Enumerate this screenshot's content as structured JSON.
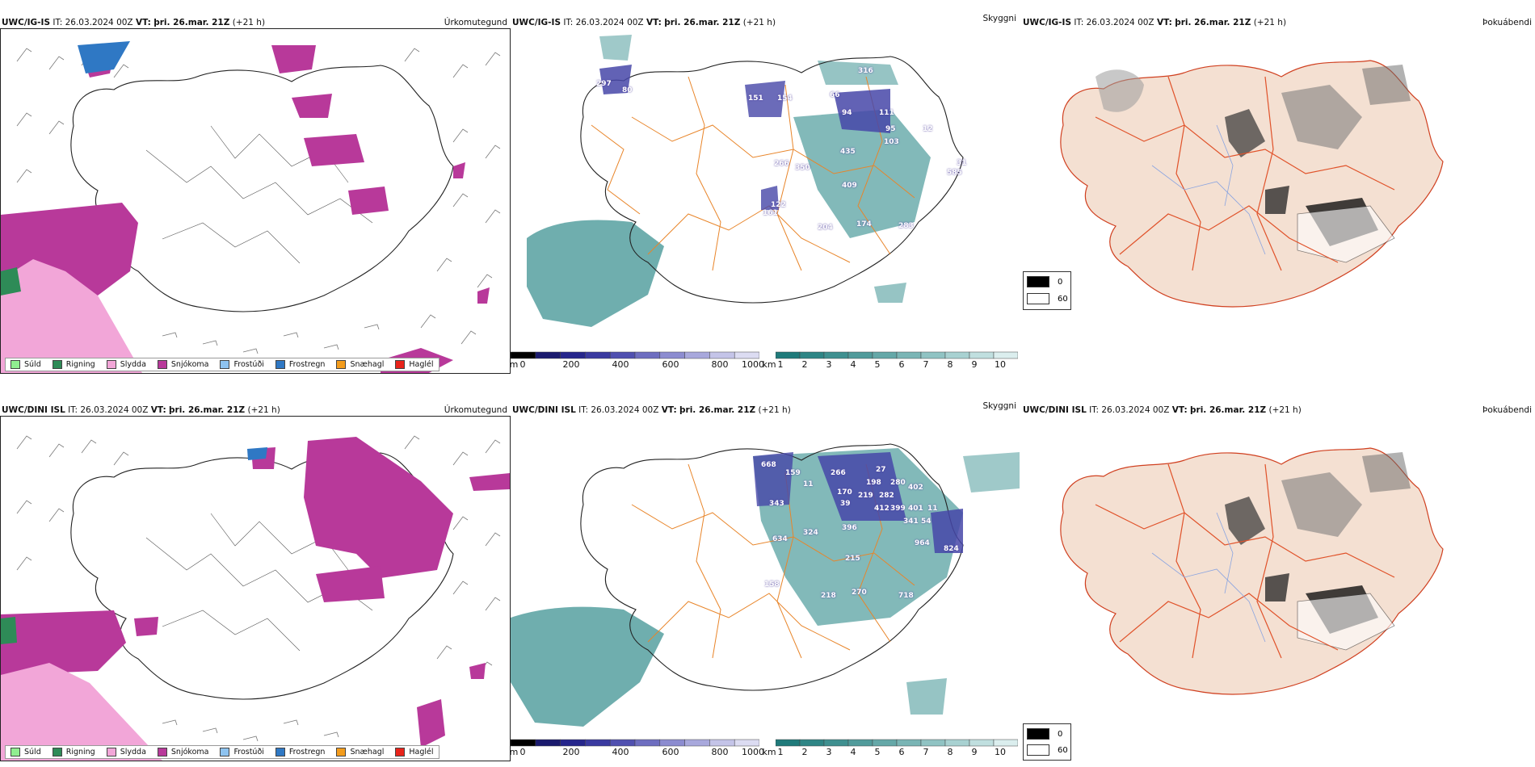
{
  "rows": [
    {
      "model": "UWC/IG-IS",
      "it_label": "IT:",
      "it": "26.03.2024 00Z",
      "vt_label": "VT:",
      "vt": "þri. 26.mar. 21Z",
      "lead": "(+21 h)",
      "precip_title": "Úrkomutegund",
      "vis_title": "Skyggni",
      "fog_title": "Þokuábendi",
      "vis_values": [
        "316",
        "297",
        "80",
        "151",
        "66",
        "154",
        "94",
        "111",
        "95",
        "12",
        "103",
        "435",
        "266",
        "350",
        "409",
        "122",
        "161",
        "585",
        "204",
        "174",
        "283",
        "31"
      ]
    },
    {
      "model": "UWC/DINI ISL",
      "it_label": "IT:",
      "it": "26.03.2024 00Z",
      "vt_label": "VT:",
      "vt": "þri. 26.mar. 21Z",
      "lead": "(+21 h)",
      "precip_title": "Úrkomutegund",
      "vis_title": "Skyggni",
      "fog_title": "Þokuábendi",
      "vis_values": [
        "668",
        "159",
        "11",
        "266",
        "27",
        "198",
        "170",
        "282",
        "280",
        "402",
        "39",
        "219",
        "412",
        "399",
        "401",
        "11",
        "343",
        "341",
        "54",
        "396",
        "324",
        "634",
        "964",
        "824",
        "215",
        "158",
        "218",
        "270",
        "718"
      ]
    }
  ],
  "precip_legend": [
    {
      "label": "Súld",
      "color": "#90ee90"
    },
    {
      "label": "Rigning",
      "color": "#2e8b57"
    },
    {
      "label": "Slydda",
      "color": "#f2a6d8"
    },
    {
      "label": "Snjókoma",
      "color": "#b8399a"
    },
    {
      "label": "Frostúði",
      "color": "#8ec3f0"
    },
    {
      "label": "Frostregn",
      "color": "#2f78c4"
    },
    {
      "label": "Snæhagl",
      "color": "#f39c1c"
    },
    {
      "label": "Haglél",
      "color": "#e8231a"
    }
  ],
  "vis_legend_m": {
    "unit": "m",
    "ticks": [
      "0",
      "200",
      "400",
      "600",
      "800",
      "1000"
    ],
    "colors": [
      "#000000",
      "#1a1a6e",
      "#26268c",
      "#3a3aa0",
      "#5050b0",
      "#6e6ec0",
      "#8c8cd0",
      "#a8a8dc",
      "#c4c4e8",
      "#dcdcf2"
    ]
  },
  "vis_legend_km": {
    "unit": "km",
    "ticks": [
      "1",
      "2",
      "3",
      "4",
      "5",
      "6",
      "7",
      "8",
      "9",
      "10"
    ],
    "colors": [
      "#1f7a7a",
      "#2e8585",
      "#3f9090",
      "#519b9b",
      "#65a8a8",
      "#7ab5b5",
      "#90c3c3",
      "#a8d1d1",
      "#c0dfdf",
      "#dbeeee"
    ]
  },
  "fog_legend": [
    {
      "label": "0",
      "color": "#000000"
    },
    {
      "label": "60",
      "color": "#ffffff"
    }
  ],
  "colors": {
    "snow": "#b8399a",
    "sleet": "#f2a6d8",
    "rain": "#2e8b57",
    "freezing_rain": "#2f78c4",
    "vis_teal": "#3f9393",
    "vis_purple": "#4646a8",
    "road": "#e8852a",
    "fog_land": "#f4e0d2",
    "fog_road": "#e0522a"
  }
}
